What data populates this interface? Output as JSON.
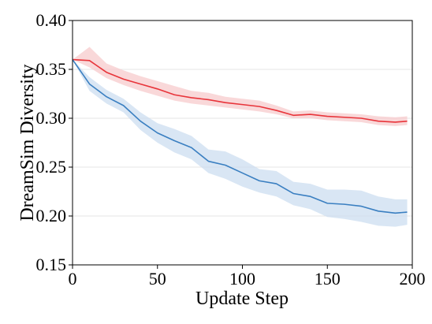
{
  "chart_data": {
    "type": "line",
    "title": "",
    "xlabel": "Update Step",
    "ylabel": "DreamSim Diversity",
    "xlim": [
      0,
      200
    ],
    "ylim": [
      0.15,
      0.4
    ],
    "xticks": [
      0,
      50,
      100,
      150,
      200
    ],
    "xtick_labels": [
      "0",
      "50",
      "100",
      "150",
      "200"
    ],
    "yticks": [
      0.15,
      0.2,
      0.25,
      0.3,
      0.35,
      0.4
    ],
    "ytick_labels": [
      "0.15",
      "0.20",
      "0.25",
      "0.30",
      "0.35",
      "0.40"
    ],
    "grid": "horizontal, light",
    "legend": "none",
    "series": [
      {
        "color": "#e8343a",
        "band_color": "#f6c7c9",
        "x": [
          0,
          10,
          20,
          30,
          40,
          50,
          60,
          70,
          80,
          90,
          100,
          110,
          120,
          130,
          140,
          150,
          160,
          170,
          180,
          190,
          197
        ],
        "y": [
          0.36,
          0.359,
          0.347,
          0.34,
          0.335,
          0.33,
          0.324,
          0.321,
          0.319,
          0.316,
          0.314,
          0.312,
          0.308,
          0.303,
          0.304,
          0.302,
          0.301,
          0.3,
          0.297,
          0.296,
          0.297
        ],
        "lower": [
          0.36,
          0.352,
          0.341,
          0.334,
          0.328,
          0.323,
          0.318,
          0.315,
          0.313,
          0.311,
          0.309,
          0.307,
          0.304,
          0.3,
          0.3,
          0.298,
          0.297,
          0.296,
          0.293,
          0.292,
          0.293
        ],
        "upper": [
          0.36,
          0.373,
          0.356,
          0.349,
          0.343,
          0.338,
          0.333,
          0.328,
          0.326,
          0.322,
          0.32,
          0.318,
          0.313,
          0.307,
          0.308,
          0.306,
          0.305,
          0.304,
          0.302,
          0.301,
          0.302
        ]
      },
      {
        "color": "#3a7fc1",
        "band_color": "#c9dcef",
        "x": [
          0,
          10,
          20,
          30,
          40,
          50,
          60,
          70,
          80,
          90,
          100,
          110,
          120,
          130,
          140,
          150,
          160,
          170,
          180,
          190,
          197
        ],
        "y": [
          0.36,
          0.335,
          0.322,
          0.313,
          0.297,
          0.285,
          0.277,
          0.27,
          0.256,
          0.252,
          0.244,
          0.236,
          0.233,
          0.223,
          0.22,
          0.213,
          0.212,
          0.21,
          0.205,
          0.203,
          0.204
        ],
        "lower": [
          0.36,
          0.328,
          0.315,
          0.306,
          0.288,
          0.275,
          0.265,
          0.258,
          0.244,
          0.238,
          0.23,
          0.224,
          0.22,
          0.211,
          0.207,
          0.199,
          0.197,
          0.194,
          0.19,
          0.189,
          0.191
        ],
        "upper": [
          0.36,
          0.342,
          0.329,
          0.32,
          0.306,
          0.295,
          0.289,
          0.282,
          0.268,
          0.266,
          0.258,
          0.248,
          0.246,
          0.235,
          0.233,
          0.227,
          0.227,
          0.226,
          0.22,
          0.217,
          0.217
        ]
      }
    ]
  }
}
